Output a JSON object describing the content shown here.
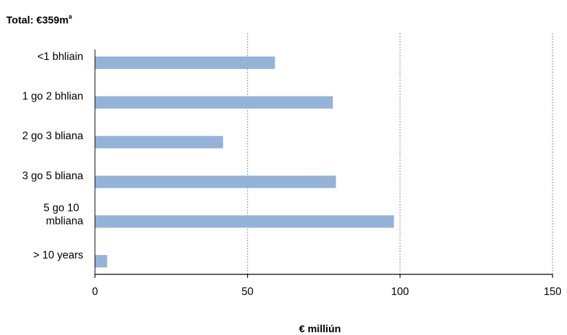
{
  "chart_data": {
    "type": "bar",
    "orientation": "horizontal",
    "title": "Total: €359m",
    "title_superscript": "a",
    "categories": [
      "<1 bhliain",
      "1 go 2 bhlian",
      "2 go 3 bliana",
      "3 go 5 bliana",
      "5 go 10 mbliana",
      "> 10 years"
    ],
    "values": [
      59,
      78,
      42,
      79,
      98,
      4
    ],
    "xlabel": "€ milliún",
    "ylabel": "",
    "xlim": [
      0,
      150
    ],
    "xticks": [
      0,
      50,
      100,
      150
    ],
    "grid": "vertical dotted",
    "bar_color": "#95b3d7"
  }
}
